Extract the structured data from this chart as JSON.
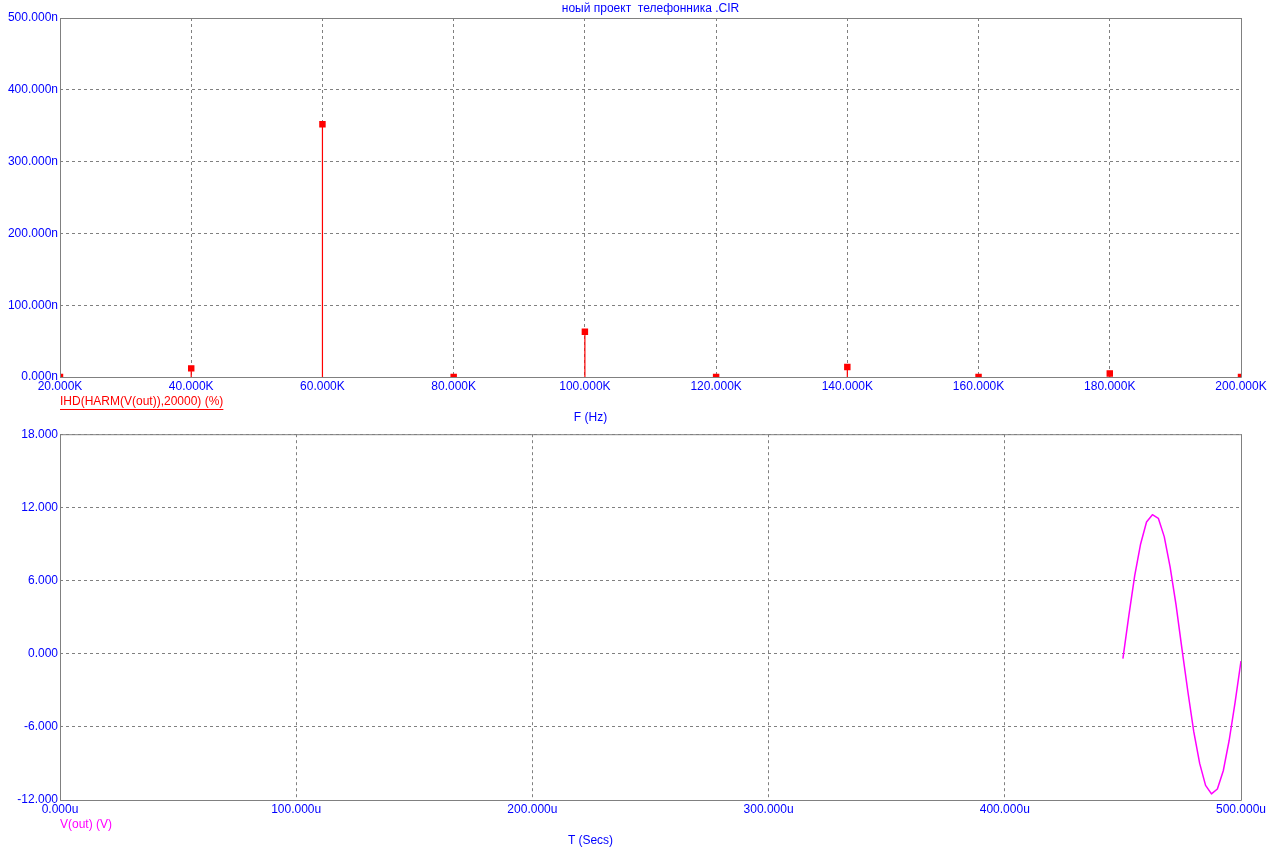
{
  "chart_data": [
    {
      "type": "lollipop",
      "title": "ноый проект  телефонника .CIR",
      "xlabel": "F (Hz)",
      "x": [
        20,
        40,
        60,
        80,
        100,
        120,
        140,
        160,
        180,
        200
      ],
      "series": [
        {
          "name": "IHD(HARM(V(out)),20000) (%)",
          "color": "#ff0000",
          "values": [
            0,
            12,
            352,
            0,
            63,
            0,
            14,
            0,
            5,
            0
          ]
        }
      ],
      "xlim": [
        20,
        200
      ],
      "xticks": [
        {
          "value": 20,
          "label": "20.000K"
        },
        {
          "value": 40,
          "label": "40.000K"
        },
        {
          "value": 60,
          "label": "60.000K"
        },
        {
          "value": 80,
          "label": "80.000K"
        },
        {
          "value": 100,
          "label": "100.000K"
        },
        {
          "value": 120,
          "label": "120.000K"
        },
        {
          "value": 140,
          "label": "140.000K"
        },
        {
          "value": 160,
          "label": "160.000K"
        },
        {
          "value": 180,
          "label": "180.000K"
        },
        {
          "value": 200,
          "label": "200.000K"
        }
      ],
      "ylim": [
        0,
        500
      ],
      "yticks": [
        {
          "value": 0,
          "label": "0.000n"
        },
        {
          "value": 100,
          "label": "100.000n"
        },
        {
          "value": 200,
          "label": "200.000n"
        },
        {
          "value": 300,
          "label": "300.000n"
        },
        {
          "value": 400,
          "label": "400.000n"
        },
        {
          "value": 500,
          "label": "500.000n"
        }
      ],
      "grid": true,
      "legend": "bottom left",
      "marker": "square"
    },
    {
      "type": "line",
      "xlabel": "T (Secs)",
      "series": [
        {
          "name": "V(out) (V)",
          "color": "#ff00ff",
          "x": [
            450,
            452.5,
            455,
            457.5,
            460,
            462.5,
            465,
            467.5,
            470,
            472.5,
            475,
            477.5,
            480,
            482.5,
            485,
            487.5,
            490,
            492.5,
            495,
            497.5,
            500
          ],
          "values": [
            -0.4,
            3.1,
            6.4,
            9.0,
            10.8,
            11.4,
            11.1,
            9.6,
            7.1,
            4.0,
            0.4,
            -3.1,
            -6.4,
            -9.0,
            -10.8,
            -11.5,
            -11.1,
            -9.6,
            -7.1,
            -4.0,
            -0.6
          ]
        }
      ],
      "xlim": [
        0,
        500
      ],
      "xticks": [
        {
          "value": 0,
          "label": "0.000u"
        },
        {
          "value": 100,
          "label": "100.000u"
        },
        {
          "value": 200,
          "label": "200.000u"
        },
        {
          "value": 300,
          "label": "300.000u"
        },
        {
          "value": 400,
          "label": "400.000u"
        },
        {
          "value": 500,
          "label": "500.000u"
        }
      ],
      "ylim": [
        -12,
        18
      ],
      "yticks": [
        {
          "value": -12,
          "label": "-12.000"
        },
        {
          "value": -6,
          "label": "-6.000"
        },
        {
          "value": 0,
          "label": "0.000"
        },
        {
          "value": 6,
          "label": "6.000"
        },
        {
          "value": 12,
          "label": "12.000"
        },
        {
          "value": 18,
          "label": "18.000"
        }
      ],
      "grid": true,
      "legend": "bottom left",
      "marker": "none",
      "line_style": "solid"
    }
  ]
}
